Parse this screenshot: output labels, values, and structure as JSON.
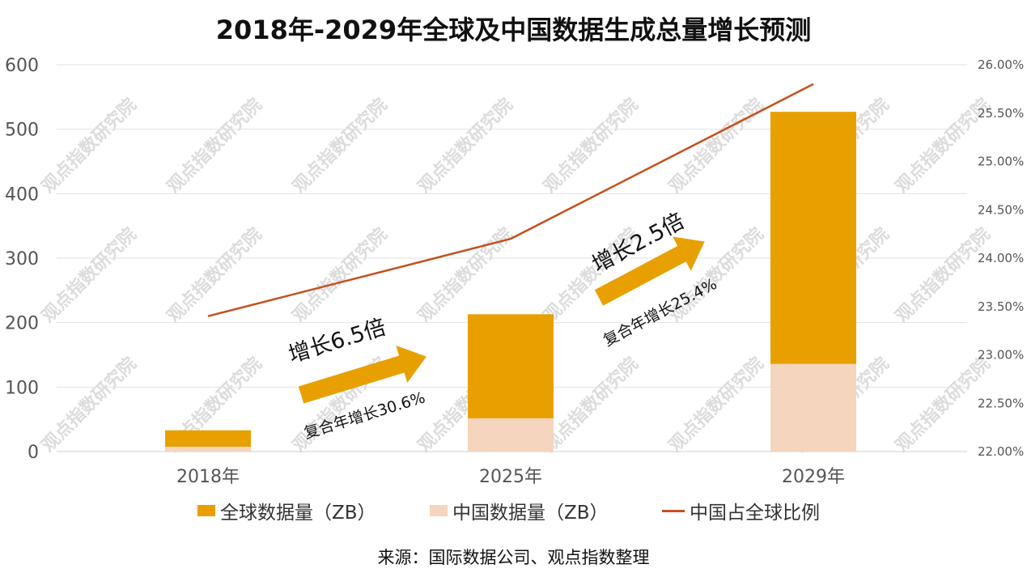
{
  "title": "2018年-2029年全球及中国数据生成总量增长预测",
  "source": "来源：国际数据公司、观点指数整理",
  "watermark": "观点指数研究院",
  "colors": {
    "global": "#E8A000",
    "china": "#F5D5BE",
    "ratio": "#C5501E",
    "arrow": "#E8A000"
  },
  "chart_data": {
    "type": "bar",
    "stacked": "overlay",
    "categories": [
      "2018年",
      "2025年",
      "2029年"
    ],
    "series": [
      {
        "name": "全球数据量（ZB）",
        "values": [
          33,
          213,
          527
        ],
        "axis": "left",
        "kind": "bar"
      },
      {
        "name": "中国数据量（ZB）",
        "values": [
          7.6,
          51.6,
          136
        ],
        "axis": "left",
        "kind": "bar"
      },
      {
        "name": "中国占全球比例",
        "values": [
          23.4,
          24.2,
          25.8
        ],
        "axis": "right",
        "kind": "line"
      }
    ],
    "ylim": [
      0,
      600
    ],
    "yticks": [
      "0",
      "100",
      "200",
      "300",
      "400",
      "500",
      "600"
    ],
    "y2lim": [
      22.0,
      26.0
    ],
    "y2ticks": [
      "22.00%",
      "22.50%",
      "23.00%",
      "23.50%",
      "24.00%",
      "24.50%",
      "25.00%",
      "25.50%",
      "26.00%"
    ],
    "grid": true,
    "legend_position": "bottom",
    "annotations": [
      {
        "growth": "增长6.5倍",
        "cagr": "复合年增长30.6%"
      },
      {
        "growth": "增长2.5倍",
        "cagr": "复合年增长25.4%"
      }
    ]
  }
}
